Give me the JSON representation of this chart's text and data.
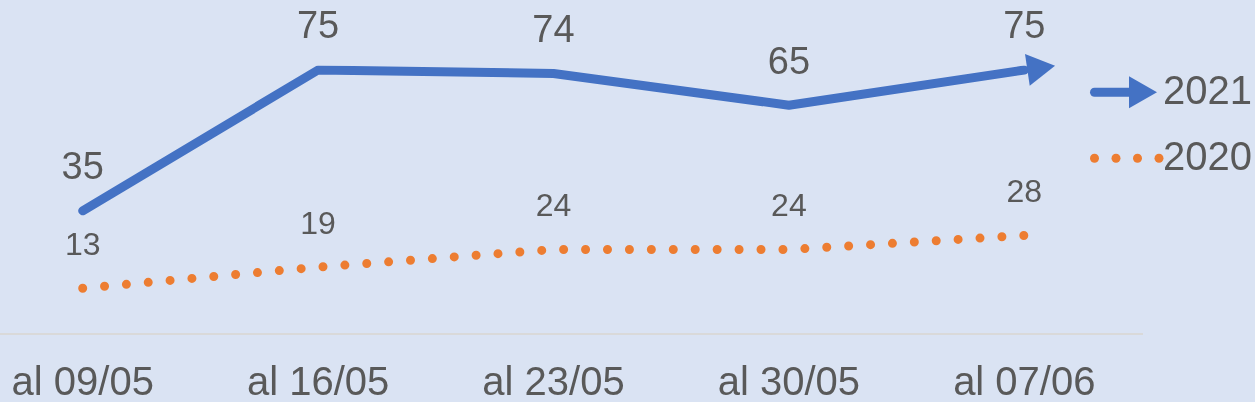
{
  "chart_data": {
    "type": "line",
    "categories": [
      "al 09/05",
      "al 16/05",
      "al 23/05",
      "al 30/05",
      "al 07/06"
    ],
    "series": [
      {
        "name": "2021",
        "color": "#4472c4",
        "line_style": "solid",
        "values": [
          35,
          75,
          74,
          65,
          75
        ]
      },
      {
        "name": "2020",
        "color": "#ed7d31",
        "line_style": "dotted",
        "values": [
          13,
          19,
          24,
          24,
          28
        ]
      }
    ],
    "tick_labels": "x",
    "data_labels": true,
    "legend": "right"
  }
}
